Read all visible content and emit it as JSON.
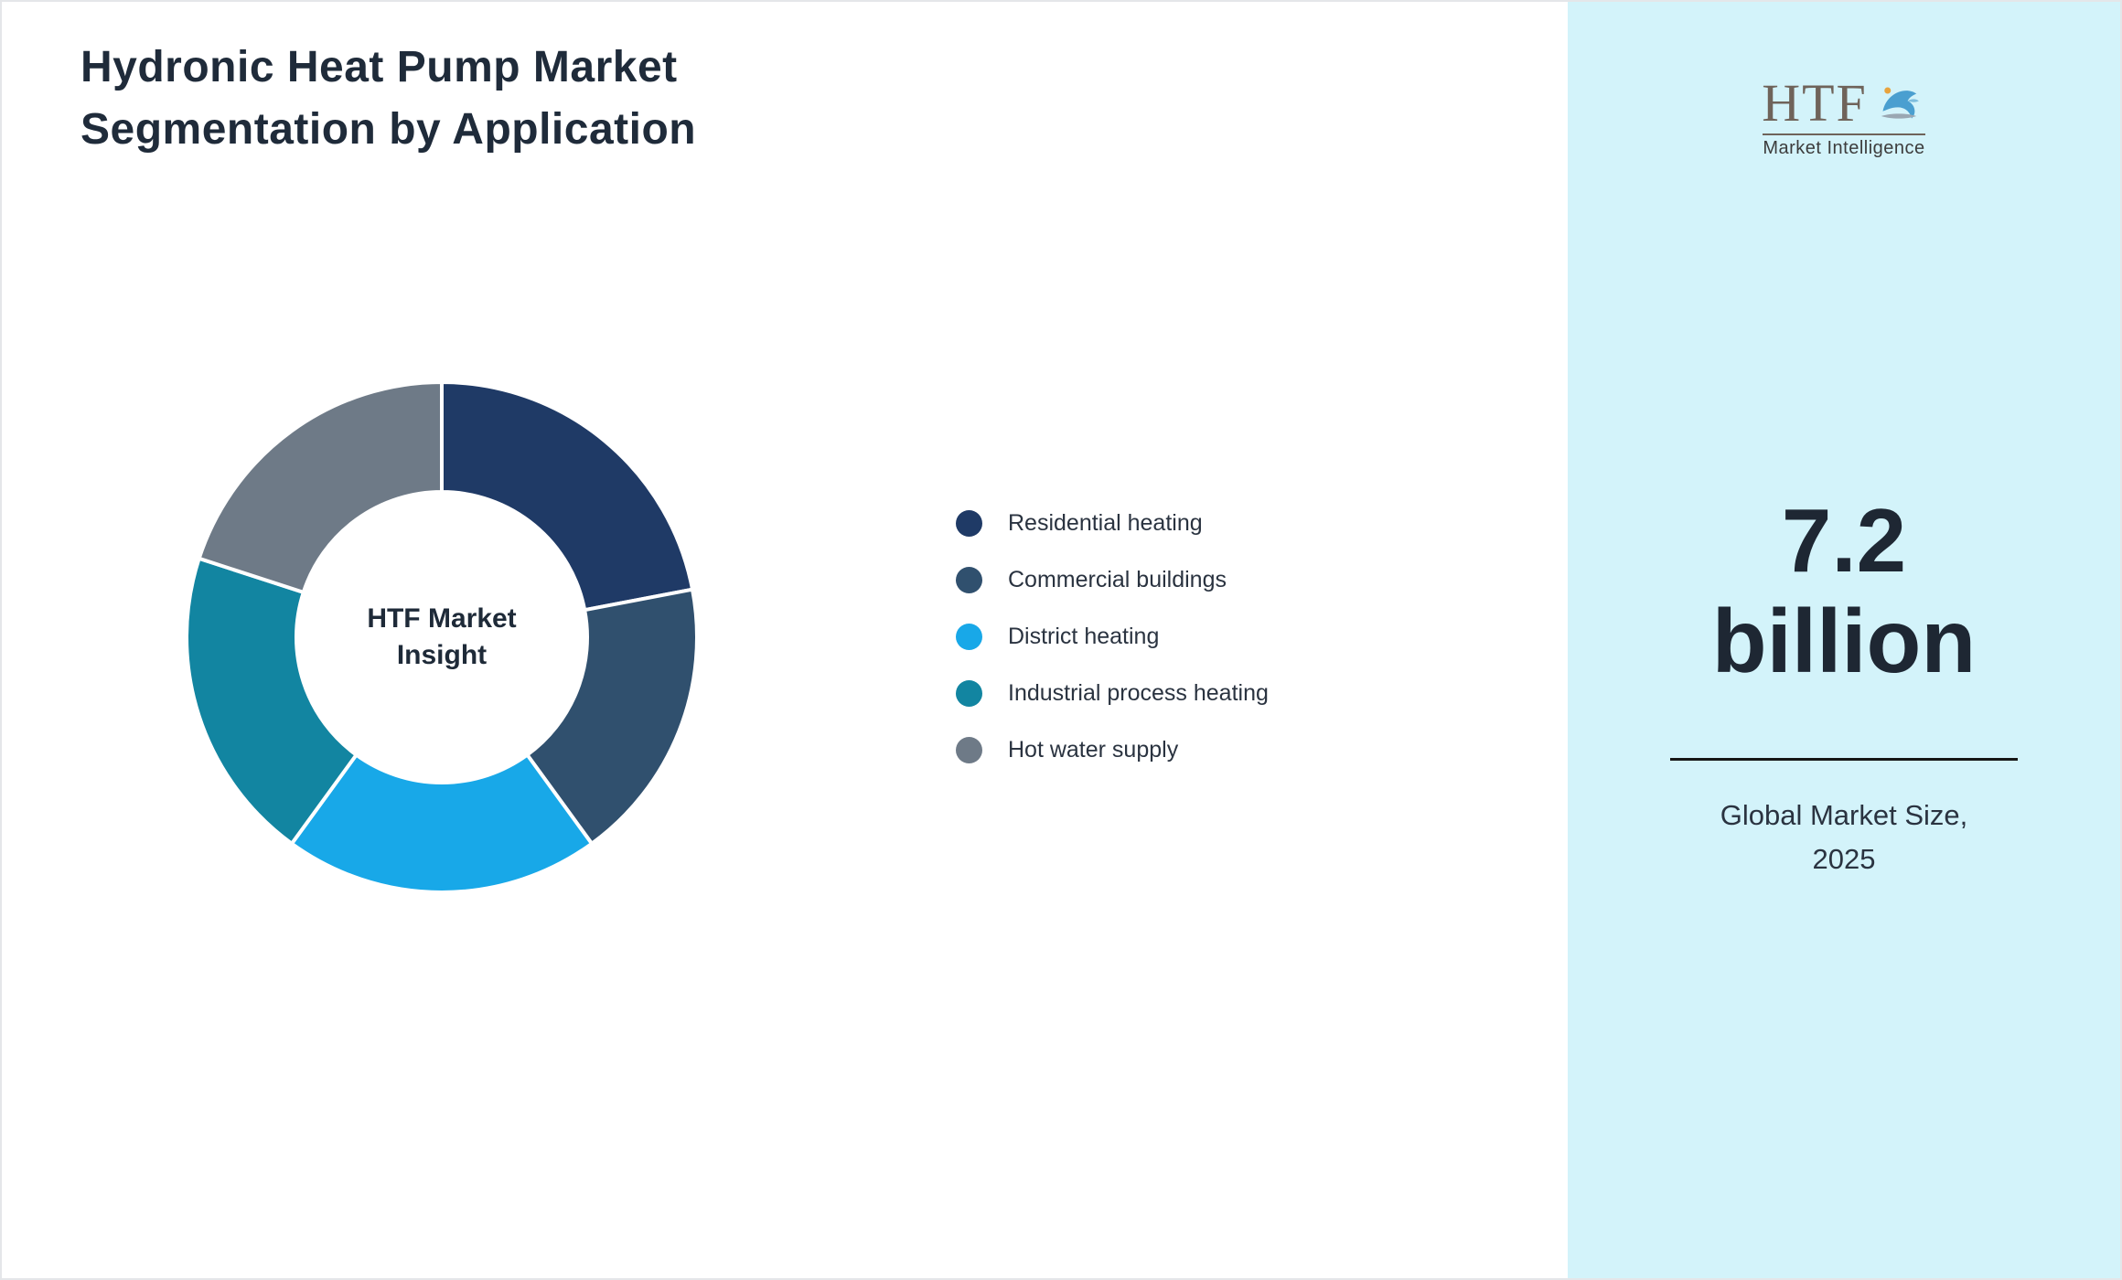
{
  "page": {
    "title": "Hydronic Heat Pump Market\nSegmentation by Application"
  },
  "chart_data": {
    "type": "pie",
    "donut": true,
    "title": "Hydronic Heat Pump Market Segmentation by Application",
    "center_label": "HTF Market\nInsight",
    "categories": [
      "Residential heating",
      "Commercial buildings",
      "District heating",
      "Industrial process heating",
      "Hot water supply"
    ],
    "values": [
      22,
      18,
      20,
      20,
      20
    ],
    "colors": [
      "#1f3a66",
      "#30506e",
      "#18a8e8",
      "#1285a1",
      "#6e7a87"
    ],
    "start_angle_deg": 0,
    "direction": "clockwise",
    "inner_radius_ratio": 0.57,
    "slice_gap_color": "#ffffff",
    "legend_position": "right"
  },
  "panel": {
    "background": "#d3f3fa",
    "logo": {
      "text": "HTF",
      "subtext": "Market Intelligence"
    },
    "stat_value_line1": "7.2",
    "stat_value_line2": "billion",
    "stat_label": "Global Market Size,\n2025"
  }
}
